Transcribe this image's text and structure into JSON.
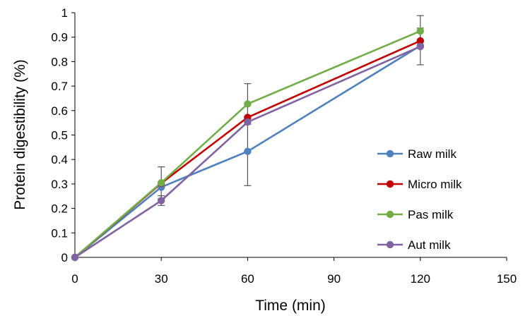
{
  "chart_data": {
    "type": "line",
    "title": "",
    "xlabel": "Time (min)",
    "ylabel": "Protein digestibility (%)",
    "xlim": [
      0,
      150
    ],
    "ylim": [
      0,
      1
    ],
    "xticks": [
      0,
      30,
      60,
      90,
      120,
      150
    ],
    "yticks": [
      0,
      0.1,
      0.2,
      0.3,
      0.4,
      0.5,
      0.6,
      0.7,
      0.8,
      0.9,
      1
    ],
    "ytick_labels": [
      "0",
      "0.1",
      "0.2",
      "0.3",
      "0.4",
      "0.5",
      "0.6",
      "0.7",
      "0.8",
      "0.9",
      "1"
    ],
    "xtick_labels": [
      "0",
      "30",
      "60",
      "90",
      "120",
      "150"
    ],
    "grid": false,
    "legend_position": "right",
    "x": [
      0,
      30,
      60,
      120
    ],
    "series": [
      {
        "name": "Raw milk",
        "color": "#4f81bd",
        "values": [
          0,
          0.287,
          0.433,
          0.865
        ],
        "err": [
          0,
          0.0,
          0.14,
          0.0
        ]
      },
      {
        "name": "Micro milk",
        "color": "#c00000",
        "values": [
          0,
          0.303,
          0.572,
          0.885
        ],
        "err": [
          0,
          0.0,
          0.0,
          0.0
        ]
      },
      {
        "name": "Pas milk",
        "color": "#70ad47",
        "values": [
          0,
          0.305,
          0.627,
          0.925
        ],
        "err": [
          0,
          0.065,
          0.083,
          0.063
        ]
      },
      {
        "name": "Aut milk",
        "color": "#8064a2",
        "values": [
          0,
          0.232,
          0.553,
          0.862
        ],
        "err": [
          0,
          0.02,
          0.0,
          0.075
        ]
      }
    ]
  }
}
